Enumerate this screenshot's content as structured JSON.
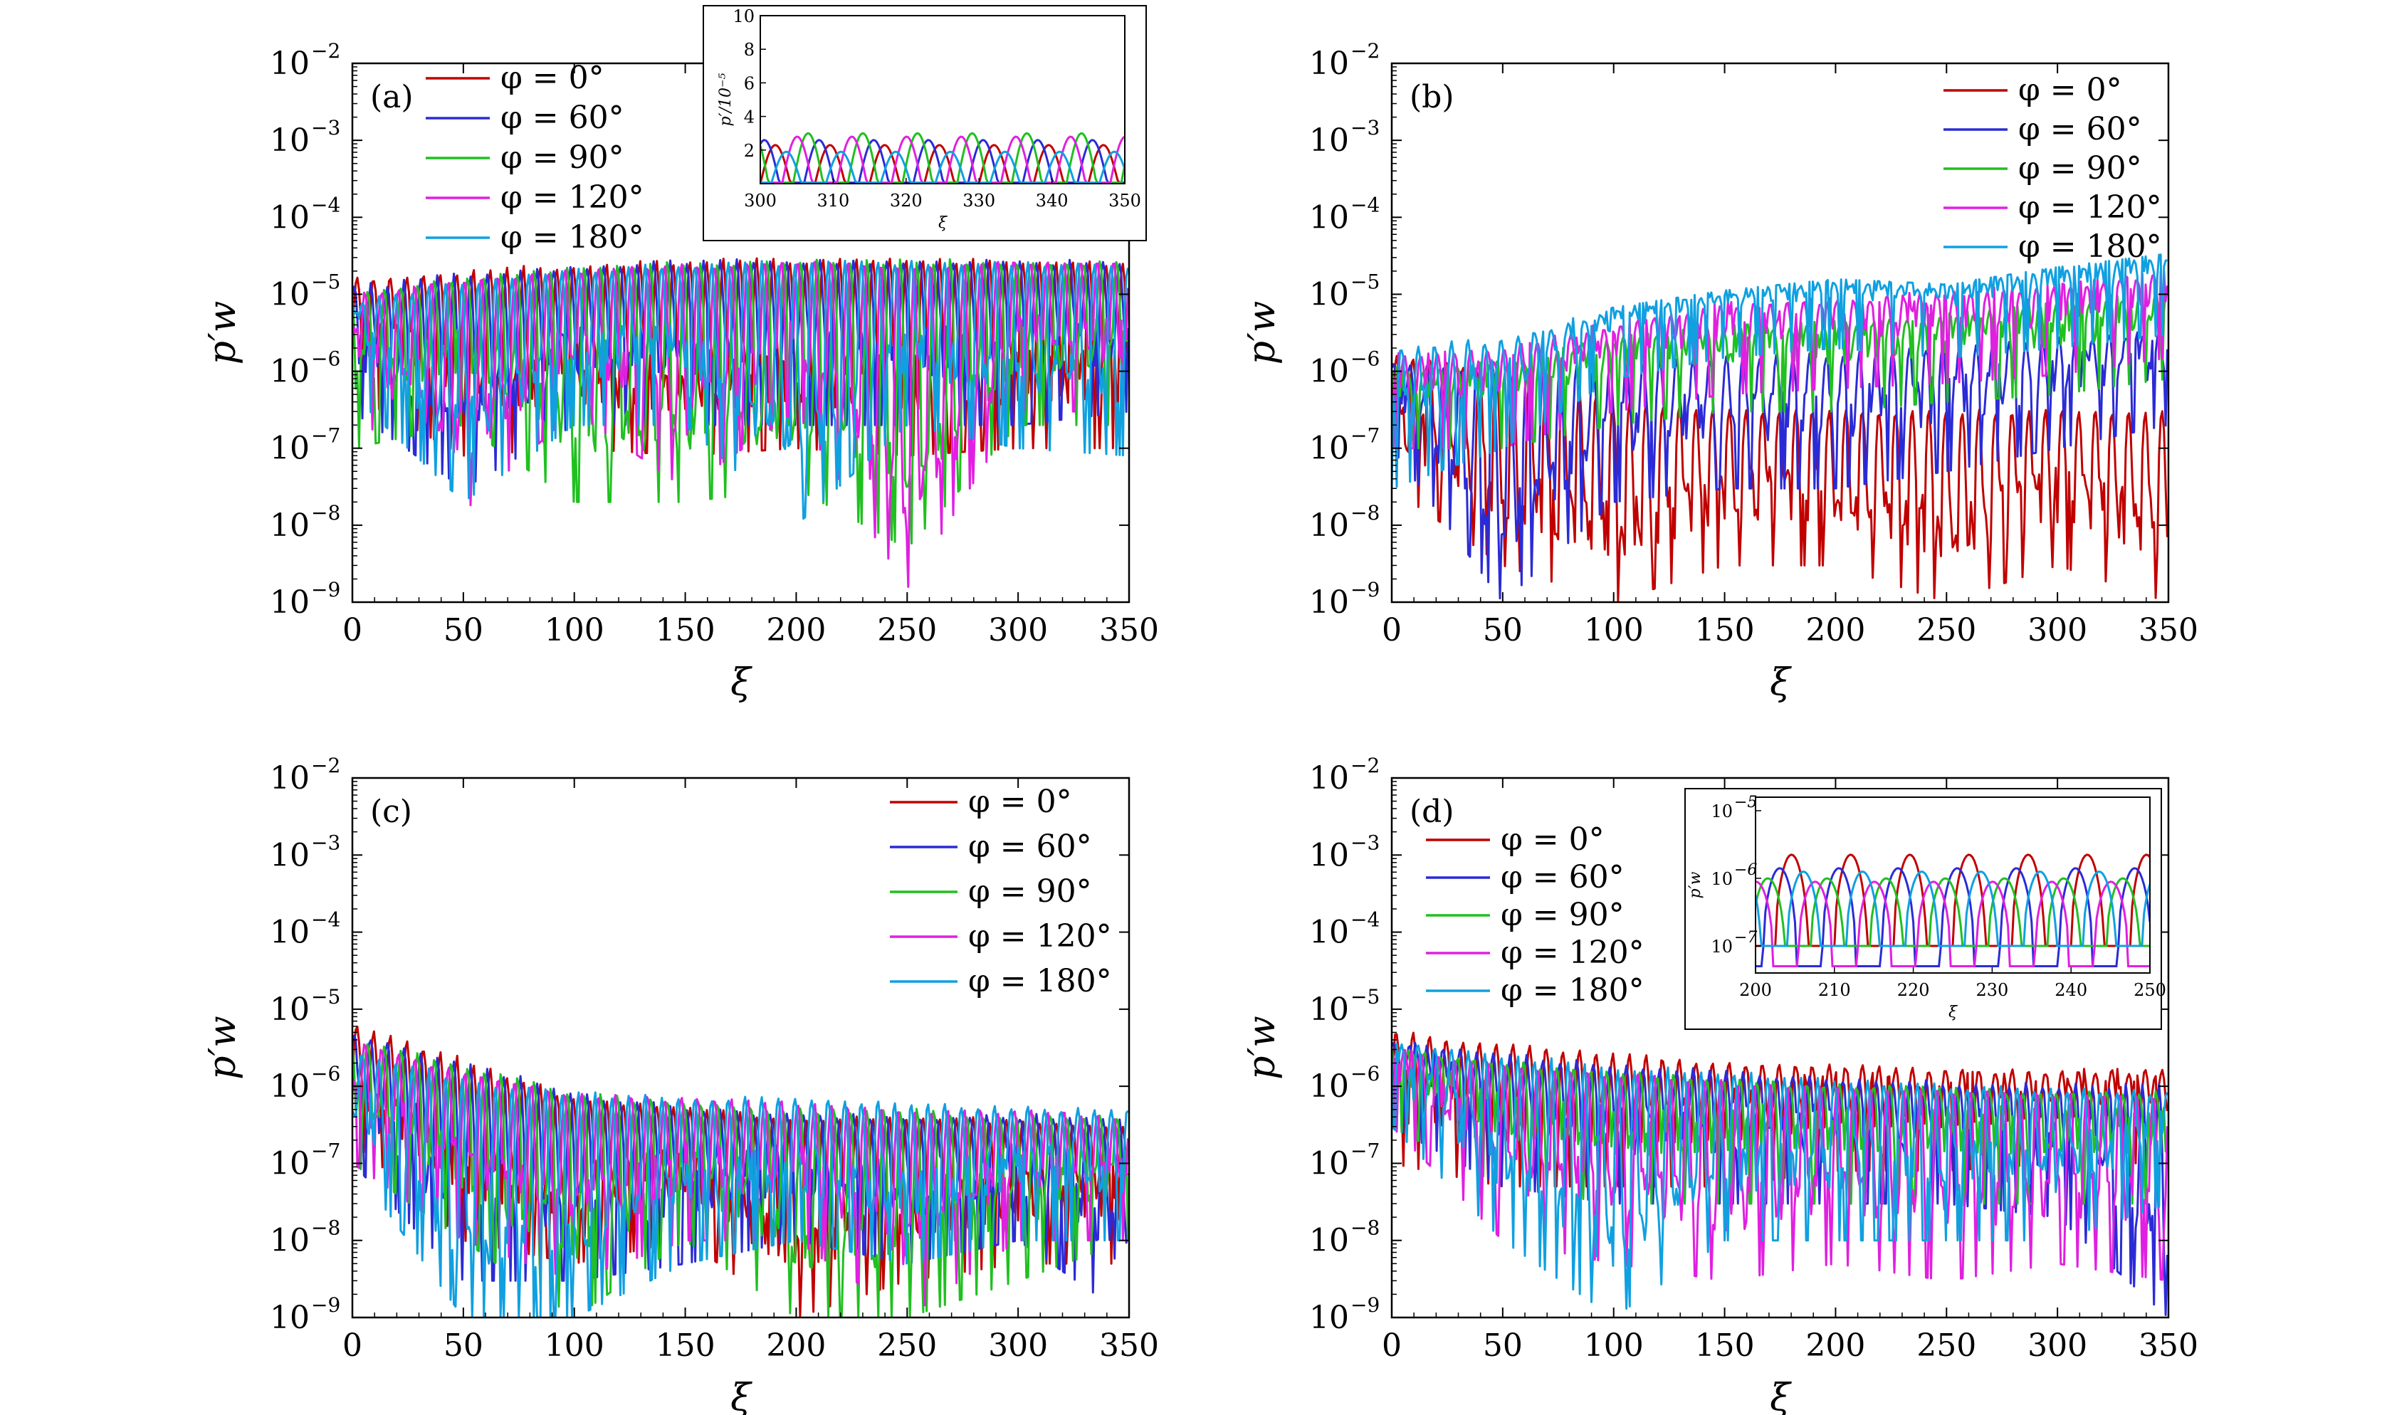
{
  "figure": {
    "x_tick_labels": [
      "0",
      "50",
      "100",
      "150",
      "200",
      "250",
      "300",
      "350"
    ],
    "y_tick_labels": [
      {
        "base": "10",
        "exp": "−9"
      },
      {
        "base": "10",
        "exp": "−8"
      },
      {
        "base": "10",
        "exp": "−7"
      },
      {
        "base": "10",
        "exp": "−6"
      },
      {
        "base": "10",
        "exp": "−5"
      },
      {
        "base": "10",
        "exp": "−4"
      },
      {
        "base": "10",
        "exp": "−3"
      },
      {
        "base": "10",
        "exp": "−2"
      }
    ],
    "legend_entries": [
      "φ = 0°",
      "φ = 60°",
      "φ = 90°",
      "φ = 120°",
      "φ = 180°"
    ],
    "series_colors": [
      "#c00000",
      "#2b2bd6",
      "#20c020",
      "#e020e0",
      "#10a0e0"
    ],
    "inset_a": {
      "ylabel": "p′/10⁻⁵",
      "xlabel": "ξ",
      "x_tick_labels": [
        "300",
        "310",
        "320",
        "330",
        "340",
        "350"
      ],
      "y_tick_labels": [
        "2",
        "4",
        "6",
        "8",
        "10"
      ]
    },
    "inset_d": {
      "ylabel": "p′w",
      "xlabel": "ξ",
      "x_tick_labels": [
        "200",
        "210",
        "220",
        "230",
        "240",
        "250"
      ],
      "y_tick_labels": [
        {
          "base": "10",
          "exp": "−7"
        },
        {
          "base": "10",
          "exp": "−6"
        },
        {
          "base": "10",
          "exp": "−5"
        }
      ]
    }
  },
  "chart_data": [
    {
      "type": "line",
      "panel": "(a)",
      "xlabel": "ξ",
      "ylabel": "p′w",
      "xlim": [
        0,
        350
      ],
      "ylim": [
        1e-09,
        0.01
      ],
      "y_scale": "log",
      "legend_position": "top-left",
      "period": 7.5,
      "series": [
        {
          "name": "φ = 0°",
          "color": "#c00000",
          "peak_x": [
            0,
            50,
            100,
            150,
            200,
            250,
            300,
            350
          ],
          "peak_y": [
            1.5e-05,
            2e-05,
            2.4e-05,
            2.7e-05,
            2.8e-05,
            2.8e-05,
            2.7e-05,
            2.6e-05
          ],
          "trough_y": [
            5e-07,
            8e-08,
            1e-07,
            8e-08,
            1e-07,
            8e-08,
            1e-07,
            1e-07
          ]
        },
        {
          "name": "φ = 60°",
          "color": "#2b2bd6",
          "peak_x": [
            0,
            50,
            100,
            150,
            200,
            250,
            300,
            350
          ],
          "peak_y": [
            1.2e-05,
            1.8e-05,
            2.2e-05,
            2.6e-05,
            2.7e-05,
            2.7e-05,
            2.6e-05,
            2.5e-05
          ],
          "trough_y": [
            3e-07,
            3e-08,
            2e-07,
            2e-07,
            2e-07,
            2e-07,
            2e-07,
            3e-07
          ]
        },
        {
          "name": "φ = 90°",
          "color": "#20c020",
          "peak_x": [
            0,
            50,
            100,
            150,
            200,
            250,
            300,
            350
          ],
          "peak_y": [
            1e-05,
            1.6e-05,
            2.2e-05,
            2.6e-05,
            2.8e-05,
            2.8e-05,
            2.7e-05,
            2.6e-05
          ],
          "trough_y": [
            1e-07,
            2e-07,
            2e-08,
            2e-08,
            3e-08,
            5e-09,
            2e-07,
            2e-07
          ]
        },
        {
          "name": "φ = 120°",
          "color": "#e020e0",
          "peak_x": [
            0,
            50,
            100,
            150,
            200,
            250,
            300,
            350
          ],
          "peak_y": [
            1e-05,
            1.6e-05,
            2.1e-05,
            2.5e-05,
            2.7e-05,
            2.7e-05,
            2.6e-05,
            2.5e-05
          ],
          "trough_y": [
            3e-07,
            1.5e-08,
            3e-07,
            3e-08,
            3e-07,
            1.5e-09,
            3e-07,
            3e-07
          ]
        },
        {
          "name": "φ = 180°",
          "color": "#10a0e0",
          "peak_x": [
            0,
            50,
            100,
            150,
            200,
            250,
            300,
            350
          ],
          "peak_y": [
            8e-06,
            1.4e-05,
            2e-05,
            2.4e-05,
            2.6e-05,
            2.6e-05,
            2.5e-05,
            2.4e-05
          ],
          "trough_y": [
            5e-07,
            2e-08,
            2e-07,
            2e-07,
            1e-08,
            2e-07,
            1e-07,
            8e-08
          ]
        }
      ]
    },
    {
      "type": "line",
      "panel": "(b)",
      "xlabel": "ξ",
      "ylabel": "p′w",
      "xlim": [
        0,
        350
      ],
      "ylim": [
        1e-09,
        0.01
      ],
      "y_scale": "log",
      "legend_position": "top-right",
      "period": 7.5,
      "series": [
        {
          "name": "φ = 0°",
          "color": "#c00000",
          "peak_x": [
            0,
            50,
            100,
            150,
            200,
            250,
            300,
            350
          ],
          "peak_y": [
            1.5e-06,
            1e-06,
            4e-07,
            3e-07,
            3e-07,
            3e-07,
            3e-07,
            3e-07
          ],
          "trough_y": [
            3e-08,
            3e-09,
            1e-09,
            3e-09,
            3e-09,
            1e-09,
            3e-09,
            1e-09
          ]
        },
        {
          "name": "φ = 60°",
          "color": "#2b2bd6",
          "peak_x": [
            0,
            50,
            100,
            150,
            200,
            250,
            300,
            350
          ],
          "peak_y": [
            1.2e-06,
            1e-06,
            1.2e-06,
            1.5e-06,
            1.6e-06,
            2e-06,
            2.5e-06,
            3e-06
          ],
          "trough_y": [
            1e-07,
            1e-09,
            2e-08,
            3e-08,
            3e-08,
            5e-08,
            1e-07,
            2e-07
          ]
        },
        {
          "name": "φ = 90°",
          "color": "#20c020",
          "peak_x": [
            0,
            50,
            100,
            150,
            200,
            250,
            300,
            350
          ],
          "peak_y": [
            1e-06,
            1.2e-06,
            2.5e-06,
            3.5e-06,
            4e-06,
            5e-06,
            7e-06,
            1e-05
          ],
          "trough_y": [
            1e-07,
            1e-07,
            2e-07,
            3e-07,
            3e-07,
            4e-07,
            5e-07,
            8e-07
          ]
        },
        {
          "name": "φ = 120°",
          "color": "#e020e0",
          "peak_x": [
            0,
            50,
            100,
            150,
            200,
            250,
            300,
            350
          ],
          "peak_y": [
            1.5e-06,
            2e-06,
            4e-06,
            7e-06,
            8e-06,
            1e-05,
            1.2e-05,
            1.8e-05
          ],
          "trough_y": [
            1e-07,
            1e-07,
            3e-07,
            5e-07,
            6e-07,
            7e-07,
            9e-07,
            1.5e-06
          ]
        },
        {
          "name": "φ = 180°",
          "color": "#10a0e0",
          "peak_x": [
            0,
            50,
            100,
            150,
            200,
            250,
            300,
            350
          ],
          "peak_y": [
            2e-06,
            2.5e-06,
            6e-06,
            1e-05,
            1.4e-05,
            1.2e-05,
            2e-05,
            3e-05
          ],
          "trough_y": [
            3e-08,
            1e-07,
            8e-07,
            1.5e-06,
            2e-06,
            1.5e-06,
            2e-06,
            3e-06
          ]
        }
      ]
    },
    {
      "type": "line",
      "panel": "(c)",
      "xlabel": "ξ",
      "ylabel": "p′w",
      "xlim": [
        0,
        350
      ],
      "ylim": [
        1e-09,
        0.01
      ],
      "y_scale": "log",
      "legend_position": "top-right",
      "period": 7.5,
      "series": [
        {
          "name": "φ = 0°",
          "color": "#c00000",
          "peak_x": [
            0,
            50,
            100,
            150,
            200,
            250,
            300,
            350
          ],
          "peak_y": [
            6e-06,
            2.2e-06,
            7e-07,
            5e-07,
            4e-07,
            4e-07,
            3.5e-07,
            3e-07
          ],
          "trough_y": [
            2e-07,
            1e-08,
            5e-09,
            1e-08,
            1e-09,
            3e-09,
            5e-09,
            5e-09
          ]
        },
        {
          "name": "φ = 60°",
          "color": "#2b2bd6",
          "peak_x": [
            0,
            50,
            100,
            150,
            200,
            250,
            300,
            350
          ],
          "peak_y": [
            5e-06,
            2e-06,
            8e-07,
            5e-07,
            4e-07,
            4e-07,
            4e-07,
            4e-07
          ],
          "trough_y": [
            1e-07,
            3e-09,
            3e-09,
            5e-09,
            1e-08,
            5e-09,
            1e-08,
            1e-09
          ]
        },
        {
          "name": "φ = 90°",
          "color": "#20c020",
          "peak_x": [
            0,
            50,
            100,
            150,
            200,
            250,
            300,
            350
          ],
          "peak_y": [
            4e-06,
            1.8e-06,
            8e-07,
            6e-07,
            5e-07,
            5e-07,
            4e-07,
            4e-07
          ],
          "trough_y": [
            1e-07,
            1e-08,
            1e-09,
            1e-08,
            1e-09,
            1e-09,
            3e-09,
            1e-08
          ]
        },
        {
          "name": "φ = 120°",
          "color": "#e020e0",
          "peak_x": [
            0,
            50,
            100,
            150,
            200,
            250,
            300,
            350
          ],
          "peak_y": [
            4e-06,
            1.5e-06,
            8e-07,
            7e-07,
            6e-07,
            5e-07,
            5e-07,
            4e-07
          ],
          "trough_y": [
            1e-07,
            1e-08,
            3e-09,
            1e-08,
            1e-08,
            1e-09,
            1e-08,
            1e-08
          ]
        },
        {
          "name": "φ = 180°",
          "color": "#10a0e0",
          "peak_x": [
            0,
            50,
            100,
            150,
            200,
            250,
            300,
            350
          ],
          "peak_y": [
            3e-06,
            1.2e-06,
            8e-07,
            7e-07,
            7e-07,
            6e-07,
            5e-07,
            5e-07
          ],
          "trough_y": [
            1e-07,
            1e-09,
            1e-09,
            5e-09,
            1e-08,
            5e-09,
            1e-08,
            1e-08
          ]
        }
      ]
    },
    {
      "type": "line",
      "panel": "(d)",
      "xlabel": "ξ",
      "ylabel": "p′w",
      "xlim": [
        0,
        350
      ],
      "ylim": [
        1e-09,
        0.01
      ],
      "y_scale": "log",
      "legend_position": "top-left",
      "period": 7.5,
      "series": [
        {
          "name": "φ = 0°",
          "color": "#c00000",
          "peak_x": [
            0,
            50,
            100,
            150,
            200,
            250,
            300,
            350
          ],
          "peak_y": [
            5e-06,
            3.5e-06,
            2.5e-06,
            2e-06,
            1.8e-06,
            1.6e-06,
            1.5e-06,
            1.5e-06
          ],
          "trough_y": [
            1e-07,
            5e-08,
            5e-08,
            5e-08,
            8e-08,
            8e-08,
            1e-07,
            1e-07
          ]
        },
        {
          "name": "φ = 60°",
          "color": "#2b2bd6",
          "peak_x": [
            0,
            50,
            100,
            150,
            200,
            250,
            300,
            350
          ],
          "peak_y": [
            3.5e-06,
            2.5e-06,
            1.8e-06,
            1.5e-06,
            1.2e-06,
            1.1e-06,
            1e-06,
            1e-06
          ],
          "trough_y": [
            3e-07,
            5e-08,
            3e-08,
            3e-08,
            3e-08,
            3e-08,
            2e-08,
            1e-09
          ]
        },
        {
          "name": "φ = 90°",
          "color": "#20c020",
          "peak_x": [
            0,
            50,
            100,
            150,
            200,
            250,
            300,
            350
          ],
          "peak_y": [
            3e-06,
            2e-06,
            1.5e-06,
            1.2e-06,
            1e-06,
            9e-07,
            8e-07,
            8e-07
          ],
          "trough_y": [
            3e-07,
            5e-08,
            3e-08,
            3e-08,
            3e-08,
            3e-08,
            3e-08,
            3e-08
          ]
        },
        {
          "name": "φ = 120°",
          "color": "#e020e0",
          "peak_x": [
            0,
            50,
            100,
            150,
            200,
            250,
            300,
            350
          ],
          "peak_y": [
            3e-06,
            2e-06,
            1.5e-06,
            1.2e-06,
            1e-06,
            9e-07,
            8e-07,
            8e-07
          ],
          "trough_y": [
            3e-07,
            1e-08,
            5e-09,
            3e-09,
            5e-09,
            3e-09,
            5e-09,
            3e-09
          ]
        },
        {
          "name": "φ = 180°",
          "color": "#10a0e0",
          "peak_x": [
            0,
            50,
            100,
            150,
            200,
            250,
            300,
            350
          ],
          "peak_y": [
            3.5e-06,
            2.5e-06,
            1.8e-06,
            1.5e-06,
            1.2e-06,
            1e-06,
            9e-07,
            8e-07
          ],
          "trough_y": [
            3e-07,
            1e-08,
            1e-09,
            1e-08,
            1e-08,
            1e-08,
            1e-08,
            3e-08
          ]
        }
      ]
    }
  ]
}
